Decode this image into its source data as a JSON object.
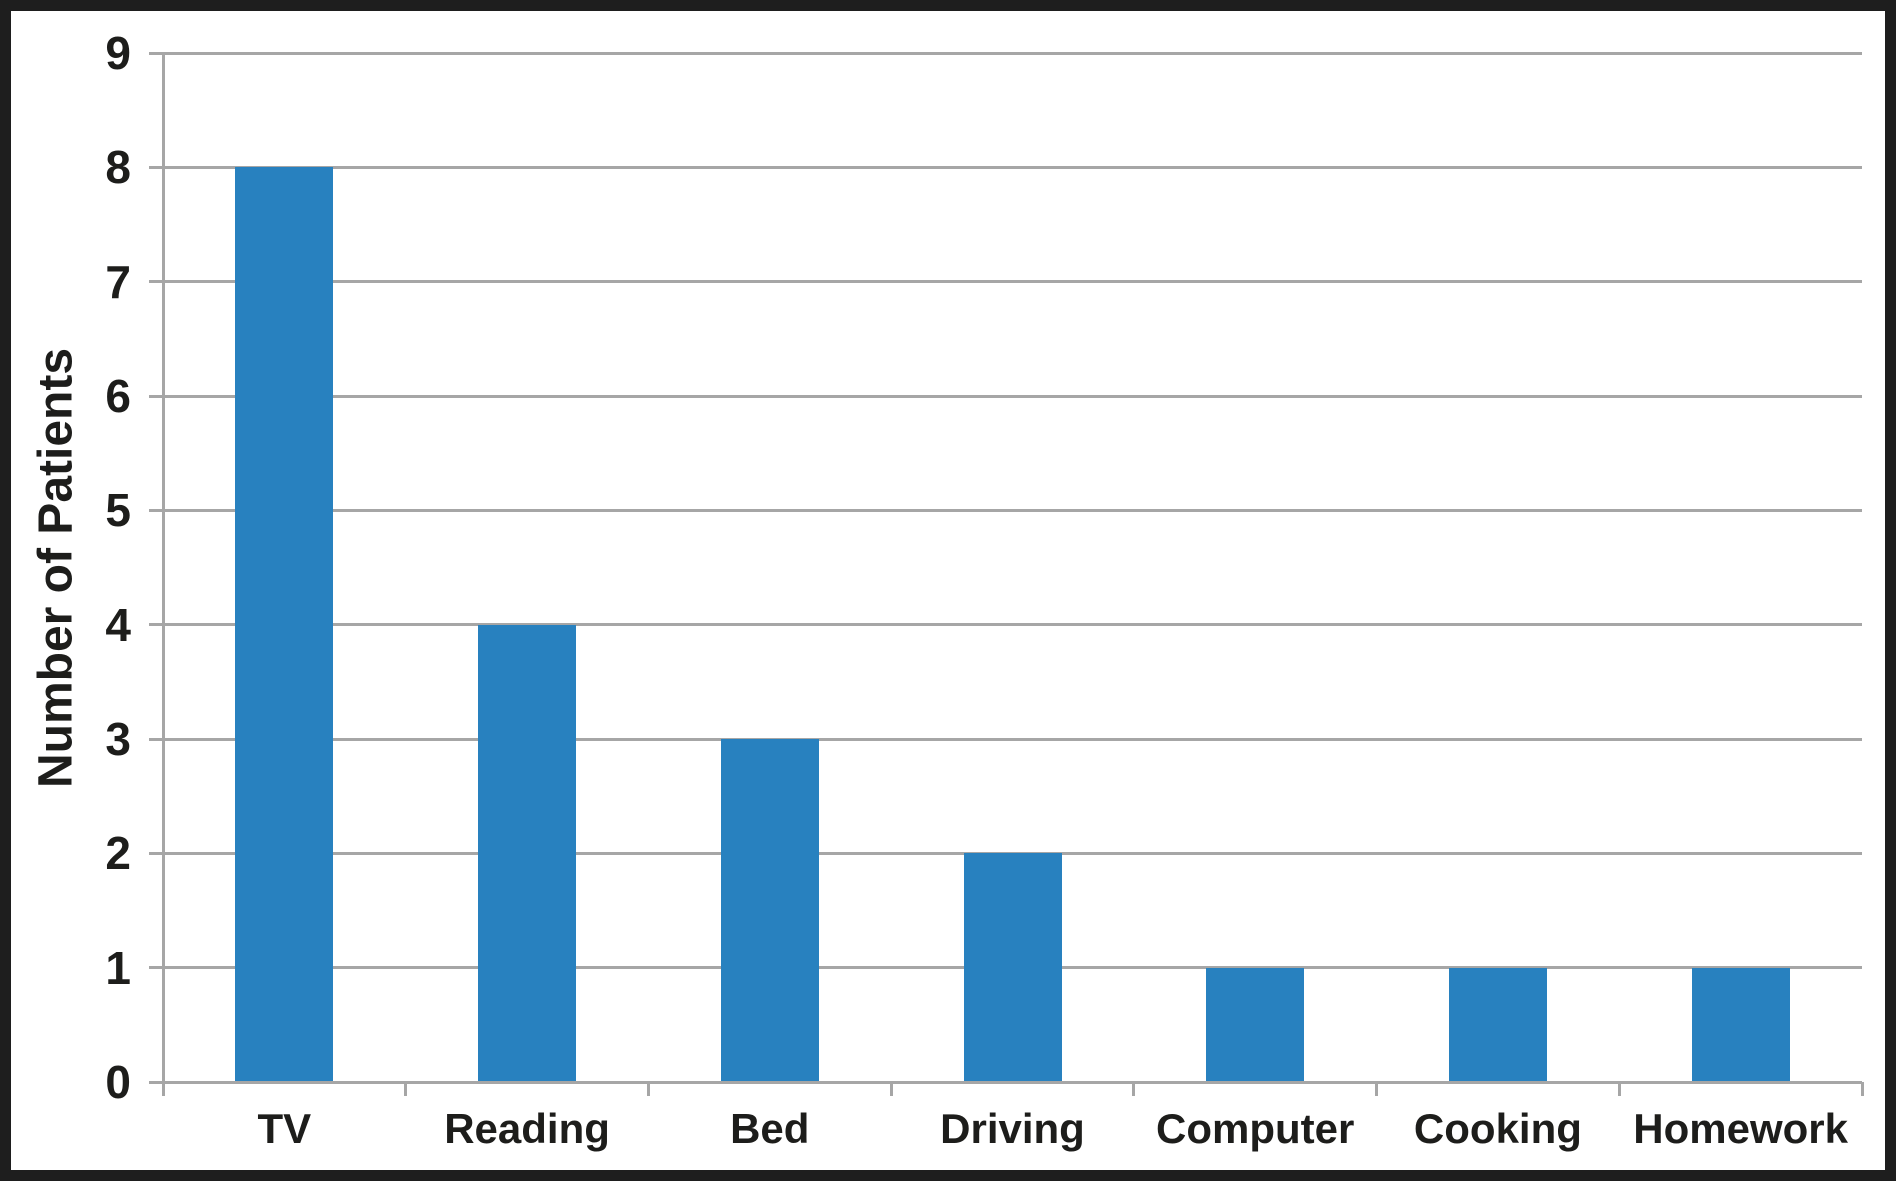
{
  "chart_data": {
    "type": "bar",
    "categories": [
      "TV",
      "Reading",
      "Bed",
      "Driving",
      "Computer",
      "Cooking",
      "Homework"
    ],
    "values": [
      8,
      4,
      3,
      2,
      1,
      1,
      1
    ],
    "title": "",
    "xlabel": "",
    "ylabel": "Number of Patients",
    "ylim": [
      0,
      9
    ],
    "ytick_step": 1,
    "grid": true,
    "legend": false,
    "colors": {
      "bar": "#2881BF",
      "gridline": "#A6A6A6",
      "axis_line": "#A6A6A6",
      "text": "#1D1D1B",
      "frame_border": "#1E1E1E",
      "background": "#FFFFFF"
    }
  }
}
